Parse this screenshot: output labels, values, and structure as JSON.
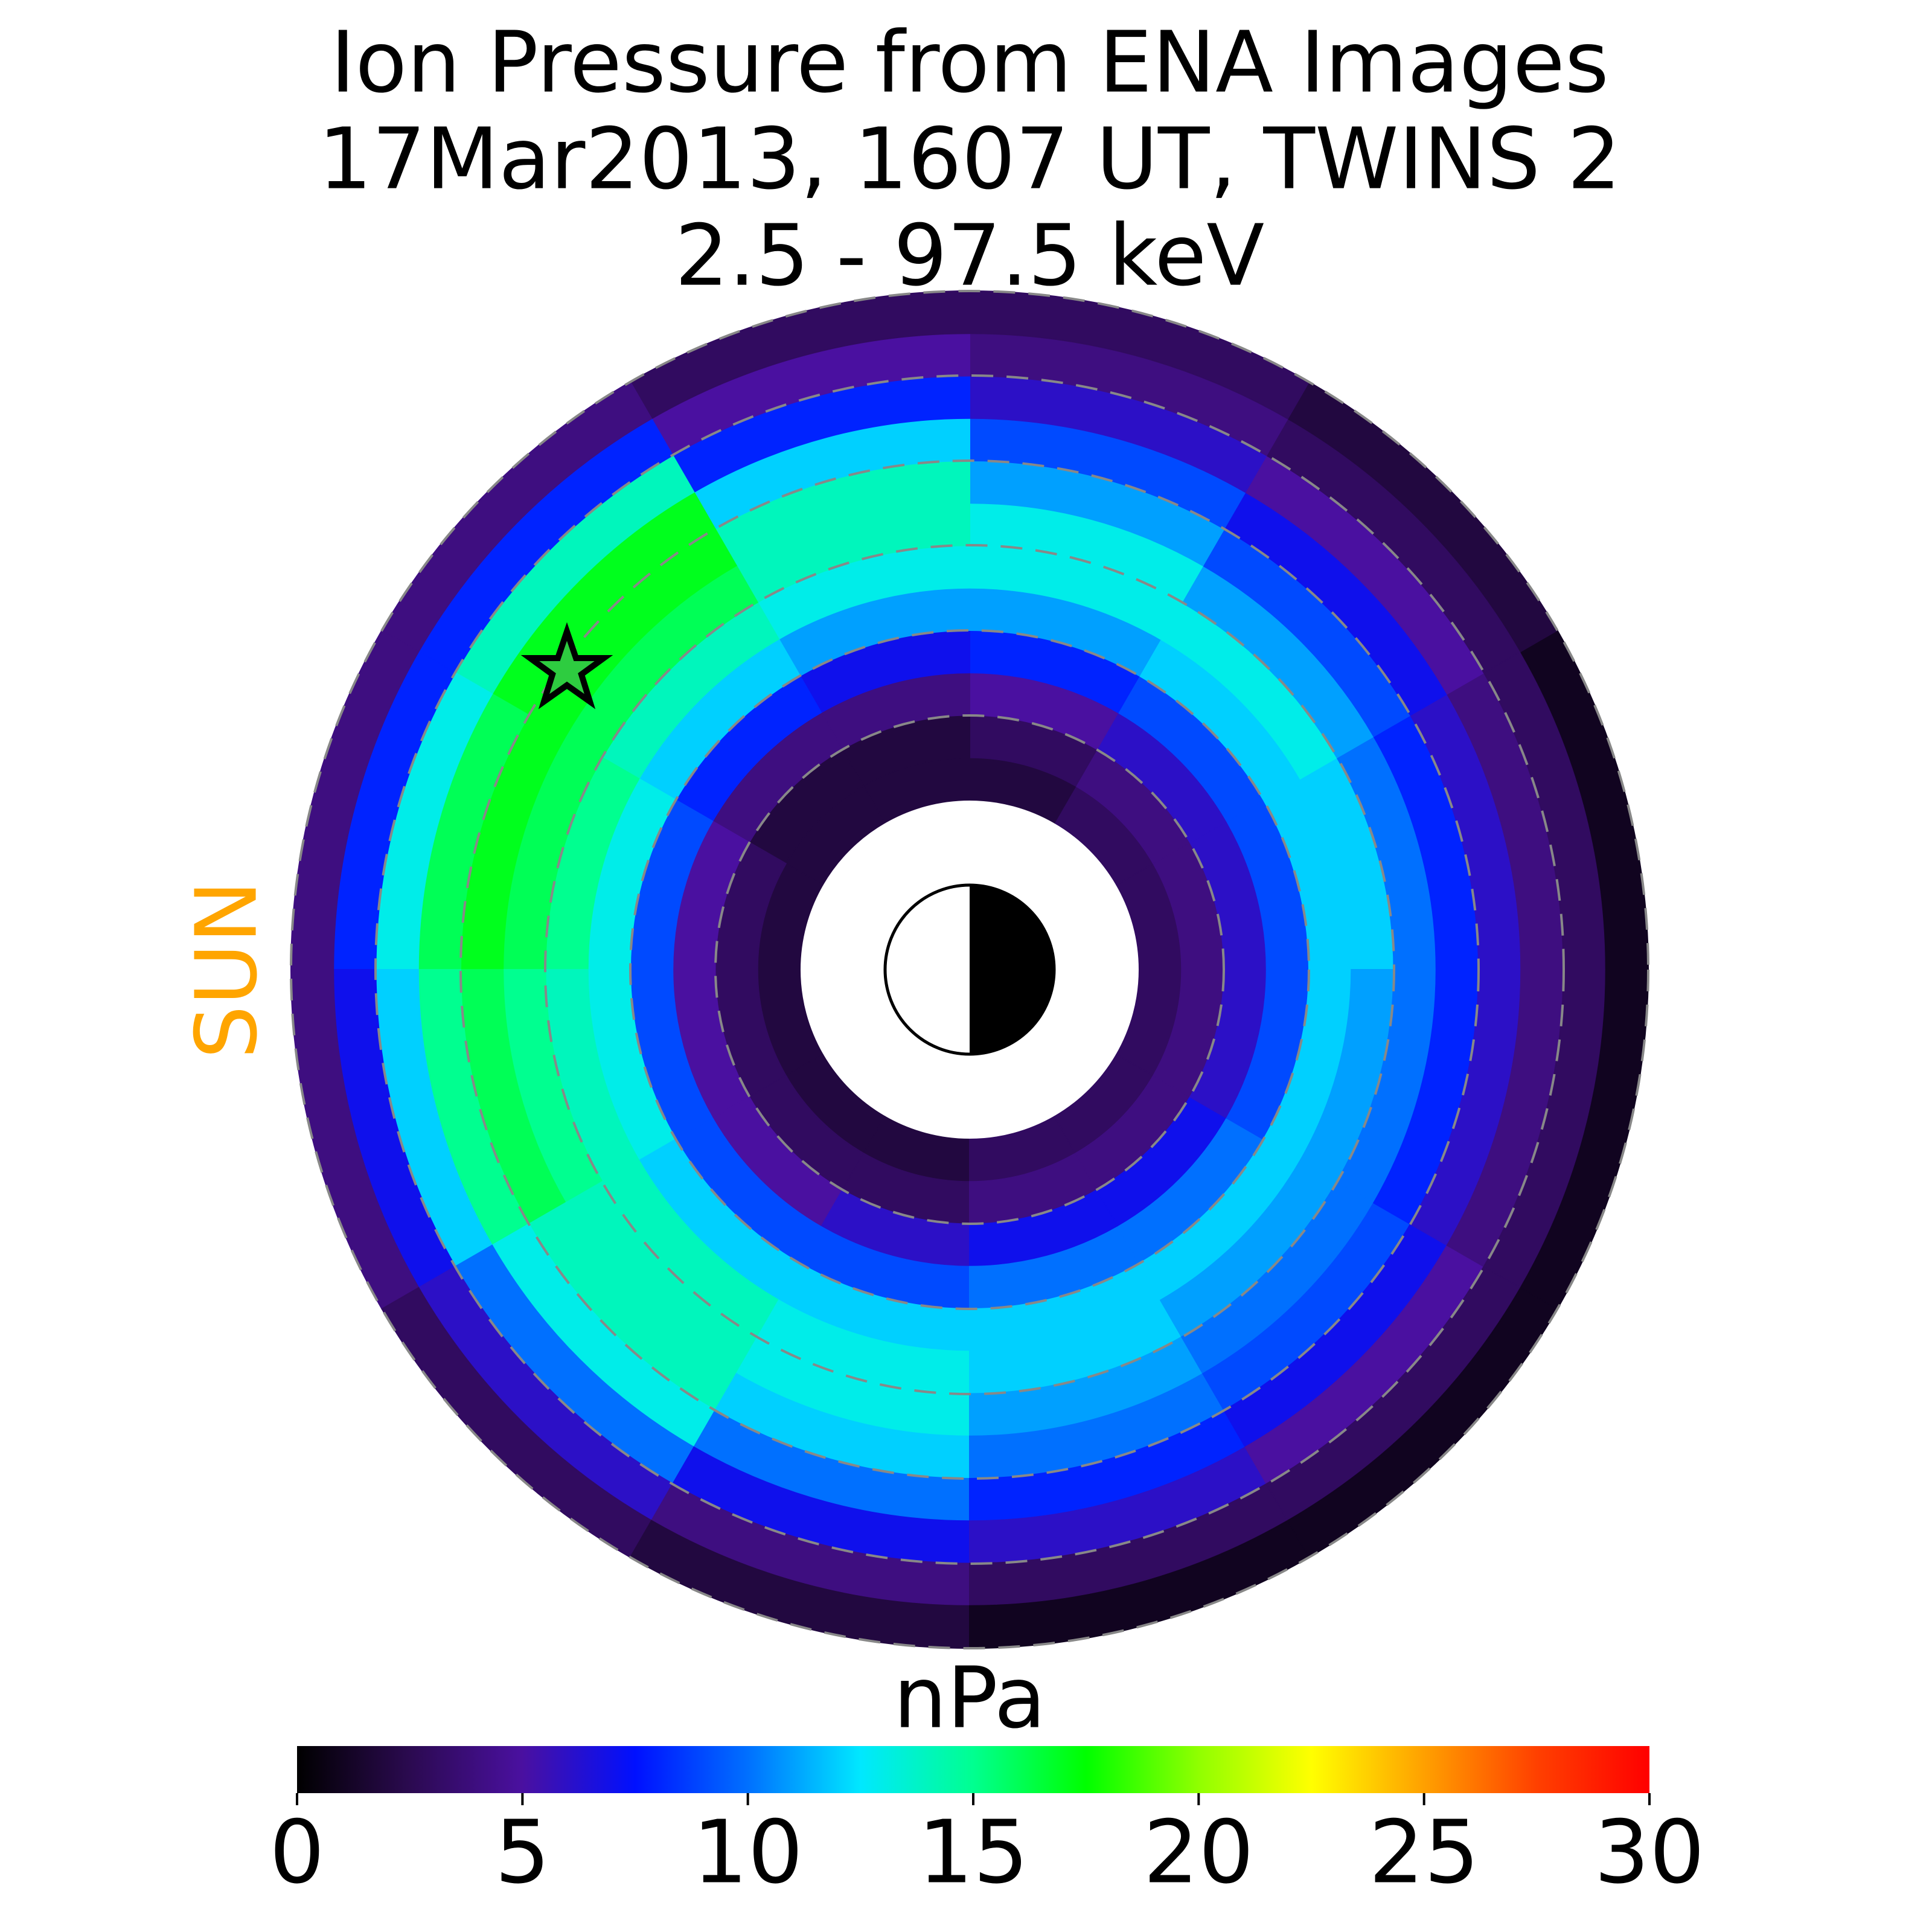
{
  "chart_data": {
    "type": "polar-image",
    "title": [
      "Ion Pressure from  ENA Images",
      "17Mar2013, 1607 UT,  TWINS 2",
      "2.5 - 97.5 keV"
    ],
    "sun_label": "SUN",
    "theta_edges": [
      0,
      30,
      60,
      90,
      120,
      150,
      180,
      210,
      240,
      270,
      300,
      330,
      360
    ],
    "r_edges": [
      2,
      2.5,
      3,
      3.5,
      4,
      4.5,
      5,
      5.5,
      6,
      6.5,
      7,
      7.5,
      8
    ],
    "values": [
      [
        3,
        4,
        6,
        9,
        12,
        12,
        10,
        8,
        6,
        4,
        3,
        1
      ],
      [
        3,
        4,
        6,
        9,
        12,
        13,
        11,
        9,
        7,
        5,
        3,
        2
      ],
      [
        2,
        3,
        5,
        8,
        11,
        13,
        13,
        11,
        9,
        6,
        4,
        3
      ],
      [
        2,
        2,
        4,
        7,
        11,
        13,
        14,
        14,
        12,
        8,
        5,
        3
      ],
      [
        2,
        2,
        4,
        8,
        12,
        14,
        16,
        17,
        17,
        14,
        8,
        4
      ],
      [
        2,
        3,
        5,
        9,
        13,
        15,
        16,
        17,
        16,
        13,
        8,
        4
      ],
      [
        2,
        3,
        5,
        9,
        13,
        14,
        15,
        16,
        15,
        12,
        7,
        4
      ],
      [
        2,
        3,
        5,
        9,
        12,
        14,
        14,
        14,
        13,
        10,
        6,
        3
      ],
      [
        2,
        3,
        6,
        9,
        12,
        13,
        13,
        12,
        10,
        7,
        4,
        2
      ],
      [
        3,
        4,
        7,
        10,
        12,
        12,
        11,
        10,
        8,
        6,
        3,
        1
      ],
      [
        3,
        4,
        7,
        10,
        12,
        11,
        10,
        9,
        7,
        5,
        3,
        1
      ],
      [
        3,
        4,
        6,
        9,
        12,
        11,
        10,
        8,
        6,
        4,
        3,
        1
      ]
    ],
    "colormap": [
      "#000000",
      "#2b0a50",
      "#4a10a0",
      "#0010ff",
      "#0070ff",
      "#00e8ff",
      "#00ff90",
      "#00ff00",
      "#90ff00",
      "#ffff00",
      "#ffa000",
      "#ff4000",
      "#ff0000"
    ],
    "colorbar": {
      "label": "nPa",
      "clim": [
        0,
        30
      ],
      "ticks": [
        0,
        5,
        10,
        15,
        20,
        25,
        30
      ]
    }
  }
}
